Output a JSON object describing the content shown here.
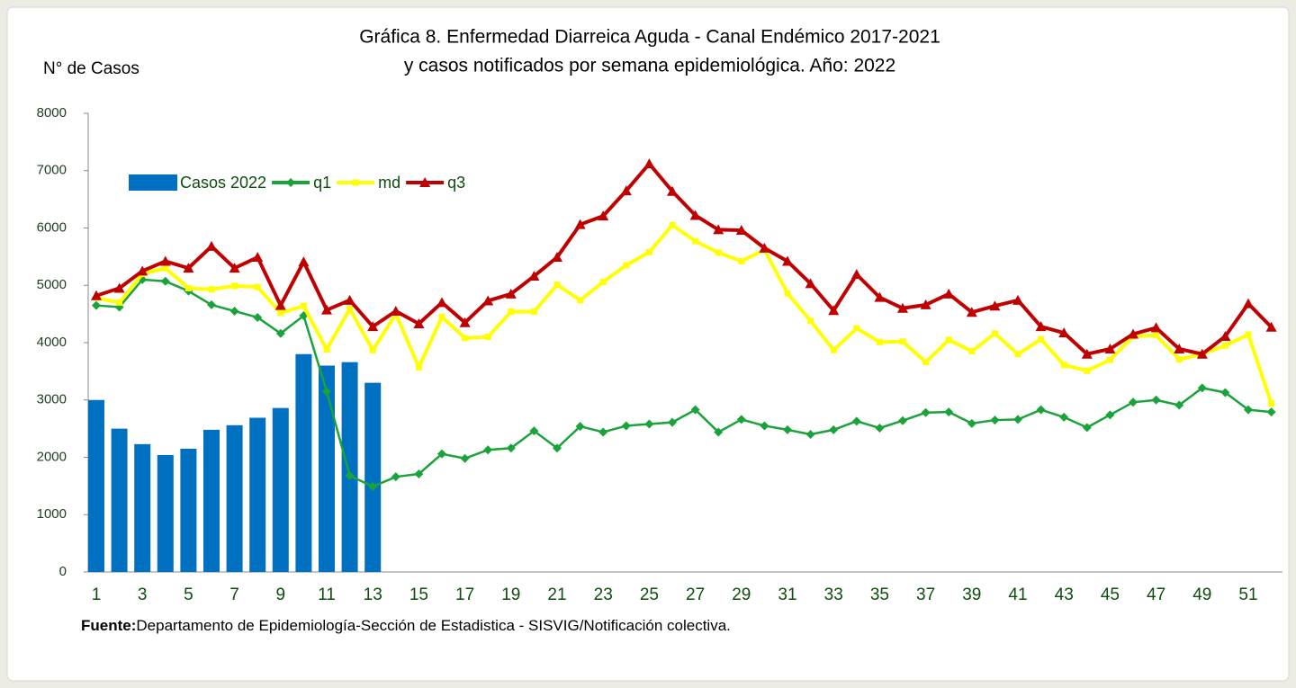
{
  "chart_data": {
    "type": "bar_line",
    "title": "Gráfica 8. Enfermedad Diarreica Aguda - Canal Endémico 2017-2021",
    "subtitle": "y casos notificados por semana epidemiológica.  Año: 2022",
    "y_label": "N° de Casos",
    "source_label": "Fuente:",
    "source": "Departamento de Epidemiología-Sección de Estadistica - SISVIG/Notificación colectiva.",
    "categories": [
      1,
      null,
      3,
      null,
      5,
      null,
      7,
      null,
      9,
      null,
      11,
      null,
      13,
      null,
      15,
      null,
      17,
      null,
      19,
      null,
      21,
      null,
      23,
      null,
      25,
      null,
      27,
      null,
      29,
      null,
      31,
      null,
      33,
      null,
      35,
      null,
      37,
      null,
      39,
      null,
      41,
      null,
      43,
      null,
      45,
      null,
      47,
      null,
      49,
      null,
      51,
      null
    ],
    "ylim": [
      0,
      8000
    ],
    "yticks": [
      0,
      1000,
      2000,
      3000,
      4000,
      5000,
      6000,
      7000,
      8000
    ],
    "series": [
      {
        "name": "Casos 2022",
        "type": "bar",
        "color": "#0070c0",
        "values": [
          3000,
          2500,
          2230,
          2040,
          2150,
          2480,
          2560,
          2690,
          2860,
          3800,
          3600,
          3660,
          3300,
          null,
          null,
          null,
          null,
          null,
          null,
          null,
          null,
          null,
          null,
          null,
          null,
          null,
          null,
          null,
          null,
          null,
          null,
          null,
          null,
          null,
          null,
          null,
          null,
          null,
          null,
          null,
          null,
          null,
          null,
          null,
          null,
          null,
          null,
          null,
          null,
          null,
          null,
          null
        ]
      },
      {
        "name": "q1",
        "type": "line",
        "marker": "diamond",
        "color": "#1aa33a",
        "values": [
          4650,
          4620,
          5100,
          5070,
          4900,
          4660,
          4550,
          4440,
          4160,
          4470,
          3150,
          1680,
          1490,
          1660,
          1710,
          2060,
          1980,
          2130,
          2160,
          2460,
          2160,
          2540,
          2440,
          2550,
          2580,
          2610,
          2830,
          2440,
          2660,
          2550,
          2480,
          2400,
          2480,
          2630,
          2510,
          2640,
          2780,
          2790,
          2590,
          2650,
          2660,
          2830,
          2700,
          2520,
          2740,
          2960,
          3000,
          2910,
          3210,
          3130,
          2830,
          2790
        ]
      },
      {
        "name": "md",
        "type": "line",
        "marker": "square",
        "color": "#ffff00",
        "values": [
          4780,
          4700,
          5200,
          5300,
          4950,
          4930,
          4990,
          4970,
          4520,
          4640,
          3880,
          4590,
          3870,
          4500,
          3570,
          4450,
          4080,
          4100,
          4540,
          4540,
          5010,
          4740,
          5060,
          5350,
          5580,
          6050,
          5770,
          5570,
          5420,
          5620,
          4860,
          4380,
          3870,
          4250,
          4010,
          4020,
          3660,
          4050,
          3850,
          4160,
          3800,
          4060,
          3610,
          3510,
          3700,
          4110,
          4130,
          3710,
          3800,
          3950,
          4140,
          2940
        ]
      },
      {
        "name": "q3",
        "type": "line",
        "marker": "triangle",
        "color": "#c00000",
        "values": [
          4820,
          4950,
          5250,
          5420,
          5300,
          5680,
          5300,
          5490,
          4650,
          5410,
          4570,
          4740,
          4280,
          4550,
          4330,
          4700,
          4350,
          4730,
          4850,
          5160,
          5490,
          6060,
          6210,
          6650,
          7120,
          6640,
          6220,
          5970,
          5960,
          5650,
          5420,
          5030,
          4560,
          5190,
          4790,
          4600,
          4660,
          4850,
          4530,
          4640,
          4740,
          4280,
          4170,
          3800,
          3890,
          4150,
          4260,
          3890,
          3800,
          4110,
          4680,
          4270
        ]
      }
    ]
  }
}
